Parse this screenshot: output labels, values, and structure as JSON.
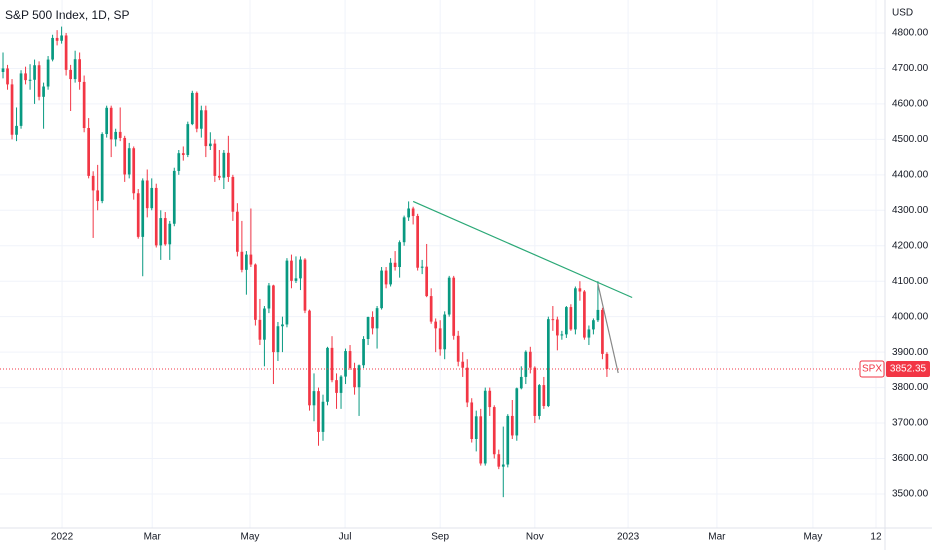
{
  "chart_data": {
    "type": "candlestick",
    "title": "S&P 500 Index, 1D, SP",
    "currency": "USD",
    "symbol": "SPX",
    "last_price": {
      "value": 3852.35,
      "label": "3852.35"
    },
    "categories": [
      null,
      null,
      null,
      null,
      null,
      null,
      null,
      null,
      null,
      null,
      null,
      null,
      null,
      null,
      null,
      null,
      null,
      null,
      null,
      null,
      null,
      null,
      null,
      null,
      null,
      null,
      null,
      null,
      null,
      null,
      null,
      null,
      null,
      null,
      null,
      null,
      null,
      null,
      null,
      null,
      null,
      null,
      null,
      null,
      null,
      null,
      null,
      null,
      null,
      null,
      null,
      null,
      null,
      null,
      null,
      null,
      null,
      null,
      null,
      null,
      null,
      null,
      null,
      null,
      null,
      null,
      null,
      null,
      null,
      null,
      null,
      null,
      null,
      null,
      null,
      null,
      null,
      null,
      null,
      null,
      null,
      null,
      null,
      null,
      null,
      null,
      null,
      null,
      null,
      null,
      null,
      null,
      null,
      null,
      null,
      null,
      null,
      null,
      null,
      null,
      null,
      null,
      null,
      null,
      null,
      null,
      null,
      null,
      null,
      null,
      null,
      null,
      null,
      null,
      null,
      null,
      null,
      null,
      null,
      null,
      null,
      null,
      null,
      null,
      null,
      null,
      null,
      null,
      null,
      null,
      null,
      null,
      null,
      null,
      null
    ],
    "ohlc": [
      [
        4690,
        4745,
        4672,
        4700
      ],
      [
        4700,
        4710,
        4640,
        4655
      ],
      [
        4655,
        4670,
        4500,
        4513
      ],
      [
        4513,
        4590,
        4495,
        4538
      ],
      [
        4538,
        4695,
        4530,
        4686
      ],
      [
        4686,
        4705,
        4655,
        4667
      ],
      [
        4667,
        4712,
        4640,
        4668
      ],
      [
        4668,
        4725,
        4600,
        4709
      ],
      [
        4709,
        4720,
        4610,
        4620
      ],
      [
        4620,
        4660,
        4530,
        4649
      ],
      [
        4649,
        4735,
        4640,
        4725
      ],
      [
        4725,
        4795,
        4720,
        4786
      ],
      [
        4786,
        4808,
        4765,
        4778
      ],
      [
        4778,
        4818,
        4770,
        4793
      ],
      [
        4793,
        4800,
        4680,
        4696
      ],
      [
        4696,
        4710,
        4580,
        4670
      ],
      [
        4670,
        4750,
        4660,
        4726
      ],
      [
        4726,
        4745,
        4640,
        4662
      ],
      [
        4662,
        4680,
        4520,
        4532
      ],
      [
        4532,
        4560,
        4390,
        4397
      ],
      [
        4397,
        4410,
        4222,
        4356
      ],
      [
        4356,
        4428,
        4300,
        4326
      ],
      [
        4326,
        4520,
        4320,
        4515
      ],
      [
        4515,
        4595,
        4505,
        4589
      ],
      [
        4589,
        4595,
        4450,
        4500
      ],
      [
        4500,
        4530,
        4480,
        4521
      ],
      [
        4521,
        4590,
        4495,
        4504
      ],
      [
        4504,
        4510,
        4380,
        4401
      ],
      [
        4401,
        4490,
        4390,
        4475
      ],
      [
        4475,
        4480,
        4330,
        4348
      ],
      [
        4348,
        4360,
        4220,
        4225
      ],
      [
        4225,
        4390,
        4114,
        4384
      ],
      [
        4384,
        4415,
        4280,
        4306
      ],
      [
        4306,
        4390,
        4300,
        4363
      ],
      [
        4363,
        4375,
        4195,
        4201
      ],
      [
        4201,
        4300,
        4160,
        4278
      ],
      [
        4278,
        4295,
        4200,
        4204
      ],
      [
        4204,
        4270,
        4160,
        4262
      ],
      [
        4262,
        4420,
        4255,
        4411
      ],
      [
        4411,
        4470,
        4400,
        4461
      ],
      [
        4461,
        4480,
        4440,
        4456
      ],
      [
        4456,
        4550,
        4450,
        4543
      ],
      [
        4543,
        4637,
        4540,
        4631
      ],
      [
        4631,
        4635,
        4520,
        4530
      ],
      [
        4530,
        4595,
        4505,
        4582
      ],
      [
        4582,
        4595,
        4450,
        4481
      ],
      [
        4481,
        4520,
        4470,
        4488
      ],
      [
        4488,
        4500,
        4380,
        4397
      ],
      [
        4397,
        4470,
        4385,
        4392
      ],
      [
        4392,
        4470,
        4360,
        4462
      ],
      [
        4462,
        4510,
        4380,
        4394
      ],
      [
        4394,
        4400,
        4270,
        4296
      ],
      [
        4296,
        4320,
        4170,
        4183
      ],
      [
        4183,
        4270,
        4125,
        4132
      ],
      [
        4132,
        4185,
        4062,
        4175
      ],
      [
        4175,
        4305,
        4140,
        4147
      ],
      [
        4147,
        4150,
        3975,
        3991
      ],
      [
        3991,
        4050,
        3920,
        3935
      ],
      [
        3935,
        4030,
        3860,
        4023
      ],
      [
        4023,
        4095,
        4010,
        4088
      ],
      [
        4088,
        4090,
        3810,
        3900
      ],
      [
        3900,
        3985,
        3875,
        3973
      ],
      [
        3973,
        4000,
        3900,
        3978
      ],
      [
        3978,
        4165,
        3970,
        4158
      ],
      [
        4158,
        4175,
        4080,
        4101
      ],
      [
        4101,
        4170,
        4095,
        4108
      ],
      [
        4108,
        4170,
        4075,
        4161
      ],
      [
        4161,
        4165,
        4010,
        4017
      ],
      [
        4017,
        4020,
        3735,
        3750
      ],
      [
        3750,
        3840,
        3705,
        3790
      ],
      [
        3790,
        3800,
        3636,
        3675
      ],
      [
        3675,
        3780,
        3650,
        3760
      ],
      [
        3760,
        3915,
        3750,
        3912
      ],
      [
        3912,
        3945,
        3815,
        3821
      ],
      [
        3821,
        3840,
        3740,
        3785
      ],
      [
        3785,
        3835,
        3740,
        3831
      ],
      [
        3831,
        3910,
        3810,
        3903
      ],
      [
        3903,
        3920,
        3850,
        3855
      ],
      [
        3855,
        3870,
        3780,
        3801
      ],
      [
        3801,
        3865,
        3720,
        3863
      ],
      [
        3863,
        3945,
        3855,
        3937
      ],
      [
        3937,
        4000,
        3920,
        3999
      ],
      [
        3999,
        4015,
        3950,
        3967
      ],
      [
        3967,
        4030,
        3910,
        4024
      ],
      [
        4024,
        4140,
        4020,
        4130
      ],
      [
        4130,
        4140,
        4080,
        4091
      ],
      [
        4091,
        4165,
        4085,
        4152
      ],
      [
        4152,
        4185,
        4130,
        4140
      ],
      [
        4140,
        4215,
        4110,
        4210
      ],
      [
        4210,
        4285,
        4200,
        4280
      ],
      [
        4280,
        4325,
        4270,
        4305
      ],
      [
        4305,
        4310,
        4260,
        4284
      ],
      [
        4284,
        4290,
        4130,
        4138
      ],
      [
        4138,
        4160,
        4120,
        4141
      ],
      [
        4141,
        4205,
        4055,
        4058
      ],
      [
        4058,
        4080,
        3980,
        3986
      ],
      [
        3986,
        3995,
        3900,
        3967
      ],
      [
        3967,
        3990,
        3890,
        3908
      ],
      [
        3908,
        4015,
        3880,
        4006
      ],
      [
        4006,
        4115,
        4000,
        4110
      ],
      [
        4110,
        4115,
        3935,
        3946
      ],
      [
        3946,
        3960,
        3860,
        3873
      ],
      [
        3873,
        3900,
        3830,
        3856
      ],
      [
        3856,
        3880,
        3745,
        3758
      ],
      [
        3758,
        3770,
        3645,
        3655
      ],
      [
        3655,
        3735,
        3620,
        3719
      ],
      [
        3719,
        3740,
        3580,
        3586
      ],
      [
        3586,
        3800,
        3580,
        3791
      ],
      [
        3791,
        3800,
        3720,
        3745
      ],
      [
        3745,
        3750,
        3600,
        3612
      ],
      [
        3612,
        3625,
        3570,
        3577
      ],
      [
        3577,
        3690,
        3491,
        3583
      ],
      [
        3583,
        3725,
        3575,
        3720
      ],
      [
        3720,
        3765,
        3655,
        3665
      ],
      [
        3665,
        3800,
        3650,
        3798
      ],
      [
        3798,
        3860,
        3795,
        3830
      ],
      [
        3830,
        3905,
        3810,
        3901
      ],
      [
        3901,
        3915,
        3840,
        3856
      ],
      [
        3856,
        3860,
        3700,
        3720
      ],
      [
        3720,
        3810,
        3710,
        3807
      ],
      [
        3807,
        3830,
        3740,
        3748
      ],
      [
        3748,
        4000,
        3745,
        3993
      ],
      [
        3993,
        4030,
        3960,
        3992
      ],
      [
        3992,
        4000,
        3905,
        3947
      ],
      [
        3947,
        3960,
        3935,
        3950
      ],
      [
        3950,
        4030,
        3940,
        4027
      ],
      [
        4027,
        4035,
        3960,
        3964
      ],
      [
        3964,
        4085,
        3950,
        4080
      ],
      [
        4080,
        4100,
        4045,
        4071
      ],
      [
        4071,
        4075,
        3935,
        3941
      ],
      [
        3941,
        3975,
        3920,
        3964
      ],
      [
        3964,
        3995,
        3950,
        3990
      ],
      [
        3990,
        4100,
        3985,
        4019
      ],
      [
        4019,
        4025,
        3880,
        3895
      ],
      [
        3895,
        3900,
        3830,
        3852.35
      ]
    ],
    "up_color": "#089981",
    "down_color": "#f23645",
    "xlim": [
      -0.67,
      195.7
    ],
    "xticks": [
      {
        "value": 13.1,
        "label": "2022"
      },
      {
        "value": 33.1,
        "label": "Mar"
      },
      {
        "value": 54.8,
        "label": "May"
      },
      {
        "value": 75.9,
        "label": "Jul"
      },
      {
        "value": 97.0,
        "label": "Sep"
      },
      {
        "value": 118.0,
        "label": "Nov"
      },
      {
        "value": 138.7,
        "label": "2023"
      },
      {
        "value": 158.4,
        "label": "Mar"
      },
      {
        "value": 179.7,
        "label": "May"
      },
      {
        "value": 193.7,
        "label": "12"
      }
    ],
    "ylim": [
      3404,
      4893
    ],
    "yticks": [
      {
        "value": 3500,
        "label": "3500.00"
      },
      {
        "value": 3600,
        "label": "3600.00"
      },
      {
        "value": 3700,
        "label": "3700.00"
      },
      {
        "value": 3800,
        "label": "3800.00"
      },
      {
        "value": 3900,
        "label": "3900.00"
      },
      {
        "value": 4000,
        "label": "4000.00"
      },
      {
        "value": 4100,
        "label": "4100.00"
      },
      {
        "value": 4200,
        "label": "4200.00"
      },
      {
        "value": 4300,
        "label": "4300.00"
      },
      {
        "value": 4400,
        "label": "4400.00"
      },
      {
        "value": 4500,
        "label": "4500.00"
      },
      {
        "value": 4600,
        "label": "4600.00"
      },
      {
        "value": 4700,
        "label": "4700.00"
      },
      {
        "value": 4800,
        "label": "4800.00"
      }
    ],
    "grid": true,
    "trendlines": [
      {
        "x": [
          91,
          139.6
        ],
        "y": [
          4325,
          4054
        ],
        "color": "#2aa876"
      },
      {
        "x": [
          132,
          136.5
        ],
        "y": [
          4092,
          3841
        ],
        "color": "#888888"
      }
    ]
  }
}
